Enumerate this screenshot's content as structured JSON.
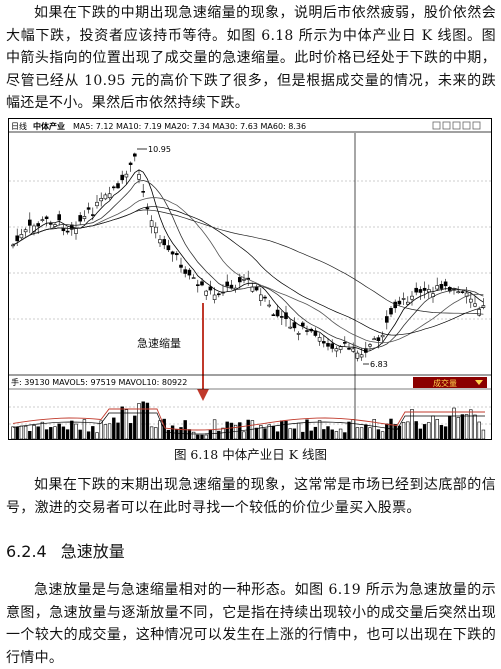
{
  "paragraph_1": "如果在下跌的中期出现急速缩量的现象，说明后市依然疲弱，股价依然会大幅下跌，投资者应该持币等待。如图 6.18 所示为中体产业日 K 线图。图中箭头指向的位置出现了成交量的急速缩量。此时价格已经处于下跌的中期，尽管已经从 10.95 元的高价下跌了很多，但是根据成交量的情况，未来的跌幅还是不小。果然后市依然持续下跌。",
  "chart": {
    "header_left": "日线",
    "stock_name": "中体产业",
    "ma_text": "MA5: 7.12  MA10: 7.19  MA20: 7.34  MA30: 7.63  MA60: 8.36",
    "high_label": "10.95",
    "low_label": "6.83",
    "annotation": "急速缩量",
    "volume_text": "手: 39130  MAVOL5: 97519  MAVOL10: 80922",
    "volume_badge": "成交量",
    "colors": {
      "ma5": "#000000",
      "ma10": "#555555",
      "ma_vol5": "#c0392b",
      "arrow": "#c0392b",
      "badge_bg": "#8b0000",
      "badge_text": "#ffd24d"
    }
  },
  "chart_data": {
    "type": "candlestick",
    "title": "中体产业",
    "series_ma": [
      {
        "name": "MA5",
        "value": 7.12
      },
      {
        "name": "MA10",
        "value": 7.19
      },
      {
        "name": "MA20",
        "value": 7.34
      },
      {
        "name": "MA30",
        "value": 7.63
      },
      {
        "name": "MA60",
        "value": 8.36
      }
    ],
    "high": 10.95,
    "low": 6.83,
    "volume": 39130,
    "mavol5": 97519,
    "mavol10": 80922
  },
  "caption": "图 6.18    中体产业日 K 线图",
  "paragraph_2": "如果在下跌的末期出现急速缩量的现象，这常常是市场已经到达底部的信号，激进的交易者可以在此时寻找一个较低的价位少量买入股票。",
  "section_number": "6.2.4",
  "section_title": "急速放量",
  "paragraph_3": "急速放量是与急速缩量相对的一种形态。如图 6.19 所示为急速放量的示意图，急速放量与逐渐放量不同，它是指在持续出现较小的成交量后突然出现一个较大的成交量，这种情况可以发生在上涨的行情中，也可以出现在下跌的行情中。"
}
